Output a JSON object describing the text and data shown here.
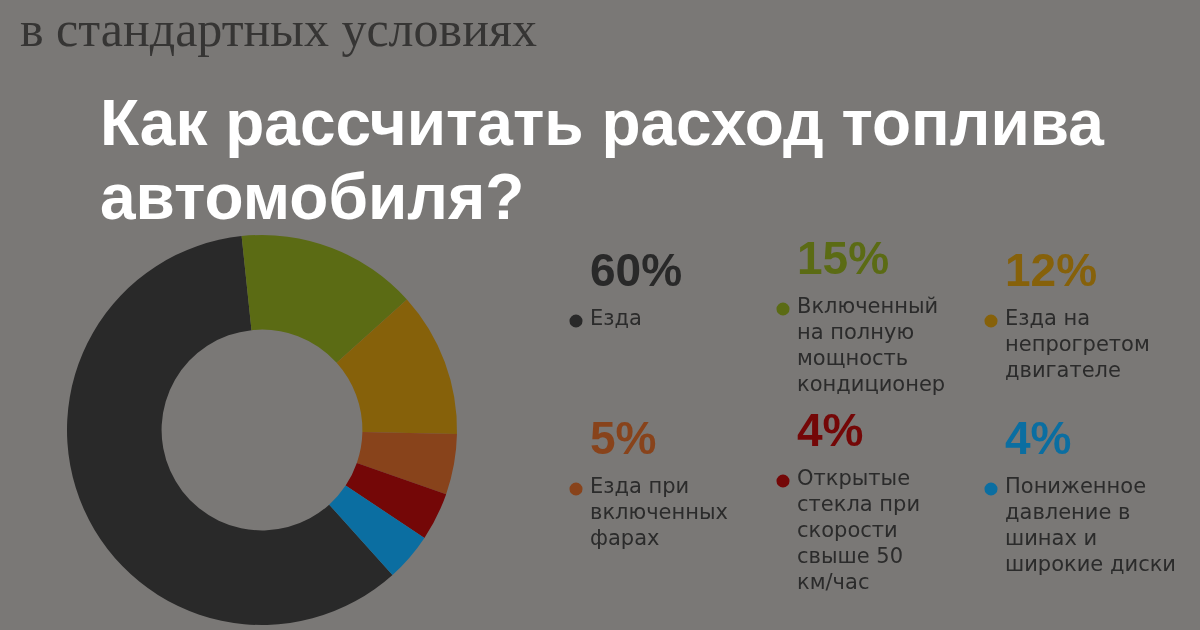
{
  "chart_data": {
    "type": "donut",
    "title": "Как рассчитать расход топлива автомобиля?",
    "subtitle": "в стандартных условиях",
    "categories": [
      "Езда",
      "Включенный на полную мощность кондиционер",
      "Езда на непрогретом двигателе",
      "Езда при включенных фарах",
      "Открытые стекла при скорости свыше 50 км/час",
      "Пониженное давление в шинах и широкие диски"
    ],
    "values": [
      60,
      15,
      12,
      5,
      4,
      4
    ],
    "value_labels": [
      "60%",
      "15%",
      "12%",
      "5%",
      "4%",
      "4%"
    ],
    "colors": [
      "#292929",
      "#5b6b14",
      "#86610a",
      "#88431b",
      "#740707",
      "#0b6ea1"
    ],
    "legend": "right"
  }
}
